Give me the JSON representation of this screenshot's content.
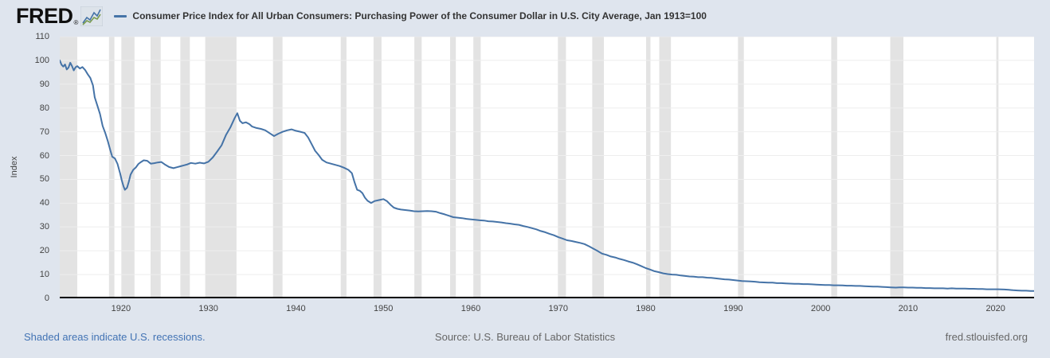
{
  "header": {
    "logo": "FRED",
    "registered": "®",
    "series_title": "Consumer Price Index for All Urban Consumers: Purchasing Power of the Consumer Dollar in U.S. City Average, Jan 1913=100"
  },
  "footer": {
    "recession_note": "Shaded areas indicate U.S. recessions.",
    "source": "Source: U.S. Bureau of Labor Statistics",
    "site": "fred.stlouisfed.org"
  },
  "colors": {
    "background": "#dfe5ee",
    "plot_bg": "#ffffff",
    "line": "#4573a7",
    "recession": "#e3e3e3",
    "gridline": "#eeeeee",
    "axis": "#000000",
    "link": "#4273b4",
    "muted_text": "#666666",
    "tick_text": "#424242",
    "logo_icon_blue": "#4573a7",
    "logo_icon_green": "#7a9c50"
  },
  "chart_data": {
    "type": "line",
    "title": "Consumer Price Index for All Urban Consumers: Purchasing Power of the Consumer Dollar in U.S. City Average, Jan 1913=100",
    "xlabel": "",
    "ylabel": "Index",
    "xlim": [
      1913,
      2024.4
    ],
    "ylim": [
      0,
      110
    ],
    "x_ticks": [
      1920,
      1930,
      1940,
      1950,
      1960,
      1970,
      1980,
      1990,
      2000,
      2010,
      2020
    ],
    "y_ticks": [
      0,
      10,
      20,
      30,
      40,
      50,
      60,
      70,
      80,
      90,
      100,
      110
    ],
    "grid": "horizontal",
    "legend_position": "top",
    "recessions": [
      [
        1913.0,
        1915.0
      ],
      [
        1918.63,
        1919.25
      ],
      [
        1920.04,
        1921.54
      ],
      [
        1923.38,
        1924.54
      ],
      [
        1926.79,
        1927.87
      ],
      [
        1929.63,
        1933.21
      ],
      [
        1937.38,
        1938.46
      ],
      [
        1945.13,
        1945.79
      ],
      [
        1948.88,
        1949.79
      ],
      [
        1953.54,
        1954.38
      ],
      [
        1957.63,
        1958.29
      ],
      [
        1960.29,
        1961.13
      ],
      [
        1969.96,
        1970.88
      ],
      [
        1973.88,
        1975.21
      ],
      [
        1980.04,
        1980.54
      ],
      [
        1981.54,
        1982.88
      ],
      [
        1990.54,
        1991.21
      ],
      [
        2001.21,
        2001.88
      ],
      [
        2007.96,
        2009.46
      ],
      [
        2020.08,
        2020.33
      ]
    ],
    "series": [
      {
        "name": "Purchasing Power of the Consumer Dollar (Jan 1913=100)",
        "points": [
          [
            1913.0,
            100
          ],
          [
            1913.2,
            98.2
          ],
          [
            1913.4,
            97.4
          ],
          [
            1913.6,
            98.3
          ],
          [
            1913.8,
            96.2
          ],
          [
            1914.0,
            97.0
          ],
          [
            1914.2,
            99.0
          ],
          [
            1914.4,
            97.6
          ],
          [
            1914.6,
            95.8
          ],
          [
            1914.8,
            97.1
          ],
          [
            1915.0,
            97.6
          ],
          [
            1915.3,
            96.6
          ],
          [
            1915.6,
            97.2
          ],
          [
            1915.9,
            96.0
          ],
          [
            1916.2,
            94.2
          ],
          [
            1916.5,
            92.6
          ],
          [
            1916.8,
            89.5
          ],
          [
            1917.0,
            84.5
          ],
          [
            1917.3,
            81.0
          ],
          [
            1917.6,
            77.5
          ],
          [
            1917.9,
            72.5
          ],
          [
            1918.2,
            69.5
          ],
          [
            1918.5,
            66.0
          ],
          [
            1918.8,
            62.0
          ],
          [
            1919.0,
            59.5
          ],
          [
            1919.3,
            58.8
          ],
          [
            1919.6,
            56.5
          ],
          [
            1919.9,
            52.5
          ],
          [
            1920.1,
            49.5
          ],
          [
            1920.3,
            47.0
          ],
          [
            1920.45,
            45.6
          ],
          [
            1920.7,
            46.5
          ],
          [
            1920.9,
            49.0
          ],
          [
            1921.1,
            52.0
          ],
          [
            1921.4,
            54.0
          ],
          [
            1921.7,
            55.0
          ],
          [
            1922.0,
            56.5
          ],
          [
            1922.3,
            57.3
          ],
          [
            1922.6,
            58.0
          ],
          [
            1923.0,
            57.8
          ],
          [
            1923.4,
            56.6
          ],
          [
            1923.8,
            56.8
          ],
          [
            1924.2,
            57.1
          ],
          [
            1924.6,
            57.3
          ],
          [
            1925.0,
            56.3
          ],
          [
            1925.5,
            55.2
          ],
          [
            1926.0,
            54.7
          ],
          [
            1926.4,
            55.1
          ],
          [
            1926.8,
            55.5
          ],
          [
            1927.2,
            55.9
          ],
          [
            1927.6,
            56.3
          ],
          [
            1928.0,
            56.9
          ],
          [
            1928.5,
            56.6
          ],
          [
            1929.0,
            57.0
          ],
          [
            1929.5,
            56.7
          ],
          [
            1930.0,
            57.4
          ],
          [
            1930.5,
            59.2
          ],
          [
            1931.0,
            61.7
          ],
          [
            1931.5,
            64.3
          ],
          [
            1932.0,
            68.6
          ],
          [
            1932.5,
            71.8
          ],
          [
            1933.0,
            75.8
          ],
          [
            1933.3,
            77.8
          ],
          [
            1933.6,
            74.6
          ],
          [
            1933.9,
            73.6
          ],
          [
            1934.3,
            74.0
          ],
          [
            1934.7,
            73.2
          ],
          [
            1935.0,
            72.2
          ],
          [
            1935.5,
            71.6
          ],
          [
            1936.0,
            71.2
          ],
          [
            1936.5,
            70.6
          ],
          [
            1937.0,
            69.4
          ],
          [
            1937.5,
            68.2
          ],
          [
            1938.0,
            69.2
          ],
          [
            1938.5,
            70.0
          ],
          [
            1939.0,
            70.6
          ],
          [
            1939.5,
            71.0
          ],
          [
            1940.0,
            70.4
          ],
          [
            1940.5,
            70.0
          ],
          [
            1941.0,
            69.5
          ],
          [
            1941.4,
            67.6
          ],
          [
            1941.8,
            64.8
          ],
          [
            1942.2,
            62.0
          ],
          [
            1942.6,
            60.2
          ],
          [
            1943.0,
            58.2
          ],
          [
            1943.5,
            57.1
          ],
          [
            1944.0,
            56.6
          ],
          [
            1944.5,
            56.1
          ],
          [
            1945.0,
            55.6
          ],
          [
            1945.5,
            54.9
          ],
          [
            1946.0,
            54.0
          ],
          [
            1946.4,
            52.6
          ],
          [
            1946.7,
            48.8
          ],
          [
            1947.0,
            45.6
          ],
          [
            1947.3,
            45.2
          ],
          [
            1947.6,
            44.2
          ],
          [
            1947.9,
            42.3
          ],
          [
            1948.2,
            41.0
          ],
          [
            1948.6,
            40.1
          ],
          [
            1949.0,
            40.9
          ],
          [
            1949.5,
            41.3
          ],
          [
            1950.0,
            41.7
          ],
          [
            1950.4,
            40.9
          ],
          [
            1950.8,
            39.4
          ],
          [
            1951.2,
            38.1
          ],
          [
            1951.6,
            37.6
          ],
          [
            1952.0,
            37.3
          ],
          [
            1952.5,
            37.1
          ],
          [
            1953.0,
            36.9
          ],
          [
            1953.5,
            36.6
          ],
          [
            1954.0,
            36.5
          ],
          [
            1954.5,
            36.6
          ],
          [
            1955.0,
            36.7
          ],
          [
            1955.5,
            36.6
          ],
          [
            1956.0,
            36.4
          ],
          [
            1956.5,
            35.8
          ],
          [
            1957.0,
            35.3
          ],
          [
            1957.5,
            34.7
          ],
          [
            1958.0,
            34.1
          ],
          [
            1958.5,
            33.9
          ],
          [
            1959.0,
            33.7
          ],
          [
            1959.5,
            33.4
          ],
          [
            1960.0,
            33.2
          ],
          [
            1960.5,
            33.0
          ],
          [
            1961.0,
            32.8
          ],
          [
            1961.5,
            32.7
          ],
          [
            1962.0,
            32.4
          ],
          [
            1962.5,
            32.3
          ],
          [
            1963.0,
            32.1
          ],
          [
            1963.5,
            31.9
          ],
          [
            1964.0,
            31.6
          ],
          [
            1964.5,
            31.4
          ],
          [
            1965.0,
            31.1
          ],
          [
            1965.5,
            30.9
          ],
          [
            1966.0,
            30.4
          ],
          [
            1966.5,
            30.0
          ],
          [
            1967.0,
            29.5
          ],
          [
            1967.5,
            29.0
          ],
          [
            1968.0,
            28.3
          ],
          [
            1968.5,
            27.8
          ],
          [
            1969.0,
            27.1
          ],
          [
            1969.5,
            26.5
          ],
          [
            1970.0,
            25.7
          ],
          [
            1970.5,
            25.1
          ],
          [
            1971.0,
            24.4
          ],
          [
            1971.5,
            24.1
          ],
          [
            1972.0,
            23.7
          ],
          [
            1972.5,
            23.3
          ],
          [
            1973.0,
            22.8
          ],
          [
            1973.5,
            21.9
          ],
          [
            1974.0,
            20.9
          ],
          [
            1974.5,
            19.9
          ],
          [
            1975.0,
            18.8
          ],
          [
            1975.5,
            18.3
          ],
          [
            1976.0,
            17.6
          ],
          [
            1976.5,
            17.2
          ],
          [
            1977.0,
            16.6
          ],
          [
            1977.5,
            16.1
          ],
          [
            1978.0,
            15.5
          ],
          [
            1978.5,
            15.0
          ],
          [
            1979.0,
            14.3
          ],
          [
            1979.5,
            13.5
          ],
          [
            1980.0,
            12.7
          ],
          [
            1980.5,
            12.1
          ],
          [
            1981.0,
            11.4
          ],
          [
            1981.5,
            11.0
          ],
          [
            1982.0,
            10.5
          ],
          [
            1982.5,
            10.2
          ],
          [
            1983.0,
            10.0
          ],
          [
            1983.5,
            9.9
          ],
          [
            1984.0,
            9.6
          ],
          [
            1984.5,
            9.4
          ],
          [
            1985.0,
            9.2
          ],
          [
            1985.5,
            9.1
          ],
          [
            1986.0,
            8.9
          ],
          [
            1986.5,
            8.9
          ],
          [
            1987.0,
            8.7
          ],
          [
            1987.5,
            8.6
          ],
          [
            1988.0,
            8.4
          ],
          [
            1988.5,
            8.2
          ],
          [
            1989.0,
            8.0
          ],
          [
            1989.5,
            7.9
          ],
          [
            1990.0,
            7.7
          ],
          [
            1990.5,
            7.5
          ],
          [
            1991.0,
            7.3
          ],
          [
            1991.5,
            7.2
          ],
          [
            1992.0,
            7.1
          ],
          [
            1992.5,
            7.0
          ],
          [
            1993.0,
            6.8
          ],
          [
            1993.5,
            6.7
          ],
          [
            1994.0,
            6.6
          ],
          [
            1994.5,
            6.6
          ],
          [
            1995.0,
            6.4
          ],
          [
            1995.5,
            6.4
          ],
          [
            1996.0,
            6.3
          ],
          [
            1996.5,
            6.2
          ],
          [
            1997.0,
            6.1
          ],
          [
            1997.5,
            6.1
          ],
          [
            1998.0,
            6.0
          ],
          [
            1998.5,
            6.0
          ],
          [
            1999.0,
            5.9
          ],
          [
            1999.5,
            5.8
          ],
          [
            2000.0,
            5.7
          ],
          [
            2000.5,
            5.6
          ],
          [
            2001.0,
            5.6
          ],
          [
            2001.5,
            5.5
          ],
          [
            2002.0,
            5.5
          ],
          [
            2002.5,
            5.4
          ],
          [
            2003.0,
            5.3
          ],
          [
            2003.5,
            5.3
          ],
          [
            2004.0,
            5.2
          ],
          [
            2004.5,
            5.2
          ],
          [
            2005.0,
            5.1
          ],
          [
            2005.5,
            5.0
          ],
          [
            2006.0,
            4.9
          ],
          [
            2006.5,
            4.9
          ],
          [
            2007.0,
            4.8
          ],
          [
            2007.5,
            4.7
          ],
          [
            2008.0,
            4.6
          ],
          [
            2008.6,
            4.5
          ],
          [
            2009.0,
            4.6
          ],
          [
            2009.5,
            4.6
          ],
          [
            2010.0,
            4.5
          ],
          [
            2010.5,
            4.5
          ],
          [
            2011.0,
            4.4
          ],
          [
            2011.5,
            4.4
          ],
          [
            2012.0,
            4.3
          ],
          [
            2012.5,
            4.3
          ],
          [
            2013.0,
            4.2
          ],
          [
            2013.5,
            4.2
          ],
          [
            2014.0,
            4.2
          ],
          [
            2014.5,
            4.1
          ],
          [
            2015.0,
            4.2
          ],
          [
            2015.5,
            4.1
          ],
          [
            2016.0,
            4.1
          ],
          [
            2016.5,
            4.1
          ],
          [
            2017.0,
            4.0
          ],
          [
            2017.5,
            4.0
          ],
          [
            2018.0,
            3.9
          ],
          [
            2018.5,
            3.9
          ],
          [
            2019.0,
            3.8
          ],
          [
            2019.5,
            3.8
          ],
          [
            2020.0,
            3.8
          ],
          [
            2020.3,
            3.8
          ],
          [
            2021.0,
            3.7
          ],
          [
            2021.5,
            3.6
          ],
          [
            2022.0,
            3.4
          ],
          [
            2022.5,
            3.3
          ],
          [
            2023.0,
            3.2
          ],
          [
            2023.5,
            3.2
          ],
          [
            2024.0,
            3.1
          ],
          [
            2024.35,
            3.1
          ]
        ]
      }
    ]
  }
}
